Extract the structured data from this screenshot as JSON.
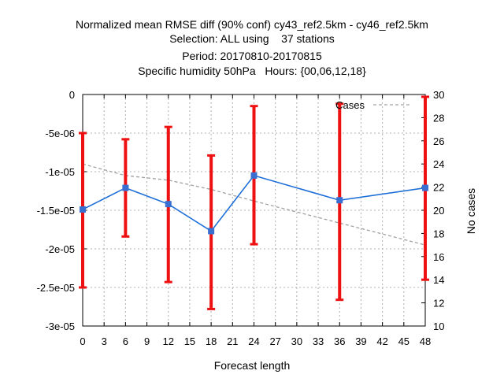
{
  "chart_data": {
    "type": "line",
    "title": [
      "Normalized mean RMSE diff (90% conf) cy43_ref2.5km - cy46_ref2.5km",
      "Selection: ALL using    37 stations",
      "Period: 20170810-20170815",
      "Specific humidity 50hPa   Hours: {00,06,12,18}"
    ],
    "xlabel": "Forecast length",
    "ylabel": "",
    "y2label": "No cases",
    "xlim": [
      0,
      48
    ],
    "ylim": [
      -3e-05,
      0
    ],
    "y2lim": [
      10,
      30
    ],
    "x_ticks": [
      0,
      3,
      6,
      9,
      12,
      15,
      18,
      21,
      24,
      27,
      30,
      33,
      36,
      39,
      42,
      45,
      48
    ],
    "x_tick_labels": [
      "0",
      "3",
      "6",
      "9",
      "12",
      "15",
      "18",
      "21",
      "24",
      "27",
      "30",
      "33",
      "36",
      "39",
      "42",
      "45",
      "48"
    ],
    "y_ticks": [
      0,
      -5e-06,
      -1e-05,
      -1.5e-05,
      -2e-05,
      -2.5e-05,
      -3e-05
    ],
    "y_tick_labels": [
      "0",
      "-5e-06",
      "-1e-05",
      "-1.5e-05",
      "-2e-05",
      "-2.5e-05",
      "-3e-05"
    ],
    "y2_ticks": [
      10,
      12,
      14,
      16,
      18,
      20,
      22,
      24,
      26,
      28,
      30
    ],
    "y2_tick_labels": [
      "10",
      "12",
      "14",
      "16",
      "18",
      "20",
      "22",
      "24",
      "26",
      "28",
      "30"
    ],
    "grid": true,
    "legend": {
      "position": "top-right",
      "entries": [
        "Cases"
      ]
    },
    "series": [
      {
        "name": "",
        "axis": "y",
        "color": "#1f6fd8",
        "x": [
          0,
          6,
          12,
          18,
          24,
          36,
          48
        ],
        "y": [
          -1.49e-05,
          -1.21e-05,
          -1.42e-05,
          -1.77e-05,
          -1.05e-05,
          -1.37e-05,
          -1.21e-05
        ],
        "error_low": [
          -2.5e-05,
          -1.84e-05,
          -2.43e-05,
          -2.78e-05,
          -1.94e-05,
          -2.66e-05,
          -2.4e-05
        ],
        "error_high": [
          -5e-06,
          -5.8e-06,
          -4.2e-06,
          -7.9e-06,
          -1.5e-06,
          -1.2e-06,
          -3e-07
        ],
        "error_color": "#ee1111"
      },
      {
        "name": "Cases",
        "axis": "y2",
        "color": "#a0a0a0",
        "dashed": true,
        "x": [
          0,
          6,
          12,
          18,
          24,
          36,
          48
        ],
        "y": [
          24,
          23,
          22.6,
          21.8,
          20.8,
          18.9,
          17
        ]
      }
    ]
  }
}
